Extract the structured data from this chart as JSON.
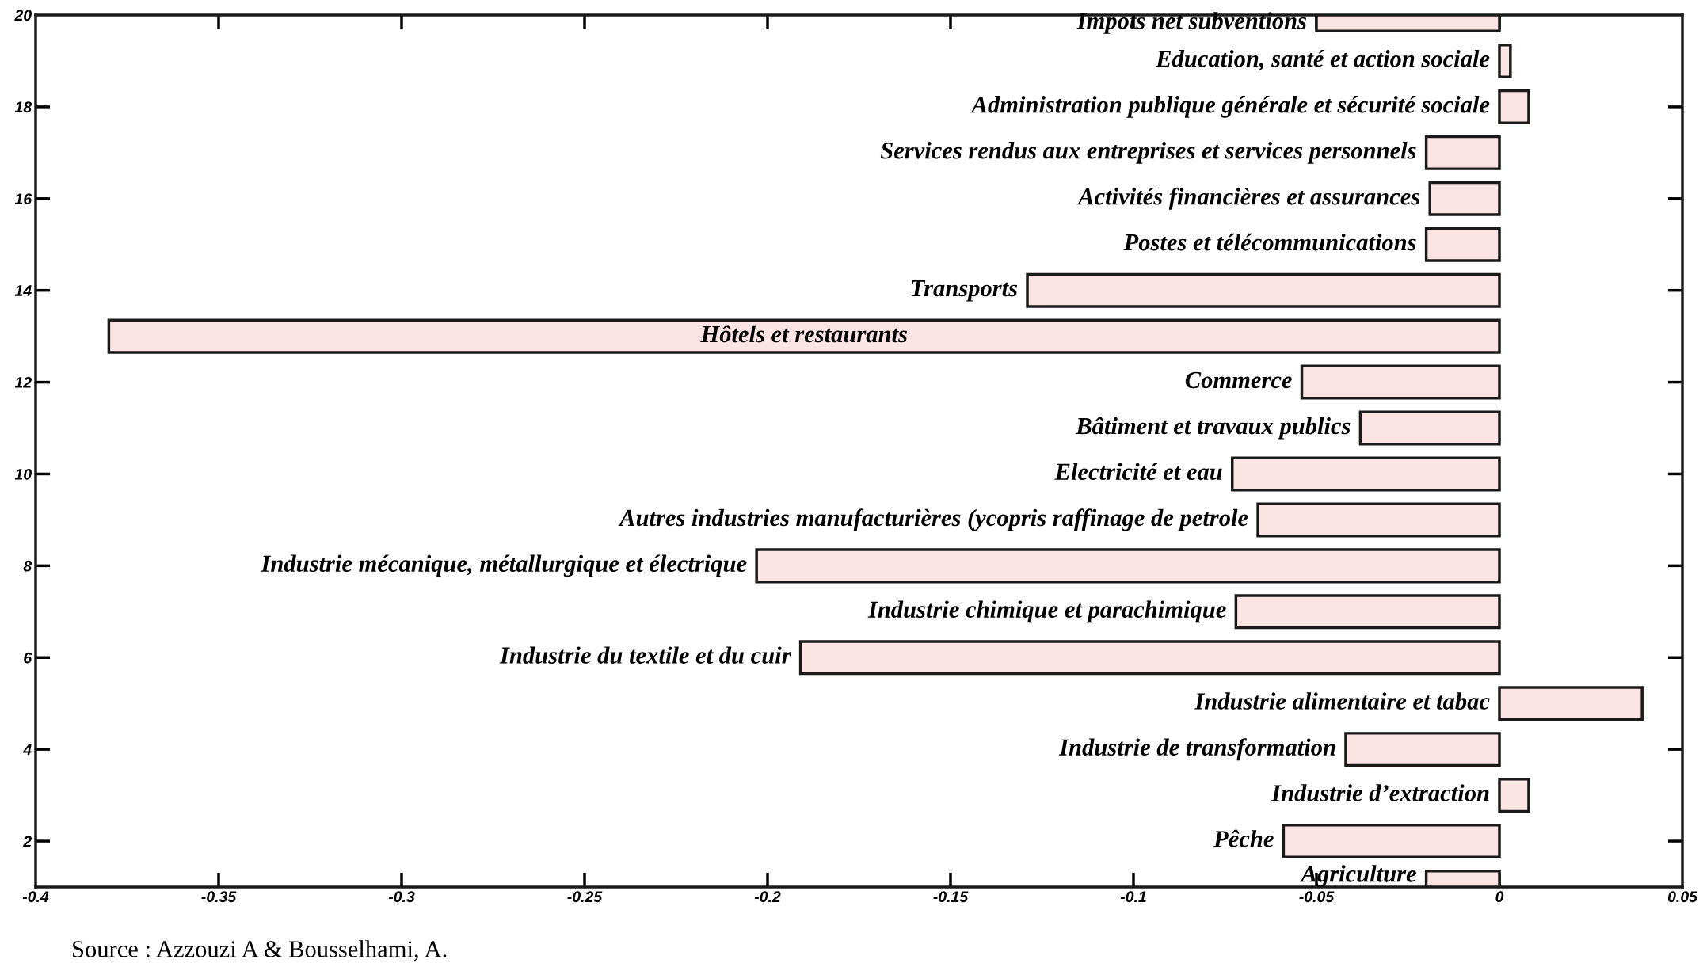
{
  "chart_data": {
    "type": "bar",
    "orientation": "horizontal",
    "x": [
      1,
      2,
      3,
      4,
      5,
      6,
      7,
      8,
      9,
      10,
      11,
      12,
      13,
      14,
      15,
      16,
      17,
      18,
      19,
      20
    ],
    "values": [
      -0.02,
      -0.059,
      0.008,
      -0.042,
      0.039,
      -0.191,
      -0.072,
      -0.203,
      -0.066,
      -0.073,
      -0.038,
      -0.054,
      -0.38,
      -0.129,
      -0.02,
      -0.019,
      -0.02,
      0.008,
      0.003,
      -0.05
    ],
    "color": "#fde4e4",
    "xlim": [
      -0.4,
      0.05
    ],
    "xticks": [
      {
        "value": -0.4,
        "label": "-0.4"
      },
      {
        "value": -0.35,
        "label": "-0.35"
      },
      {
        "value": -0.3,
        "label": "-0.3"
      },
      {
        "value": -0.25,
        "label": "-0.25"
      },
      {
        "value": -0.2,
        "label": "-0.2"
      },
      {
        "value": -0.15,
        "label": "-0.15"
      },
      {
        "value": -0.1,
        "label": "-0.1"
      },
      {
        "value": -0.05,
        "label": "-0.05"
      },
      0,
      0.05
    ],
    "ylim": [
      1,
      20
    ],
    "yticks": [
      2,
      4,
      6,
      8,
      10,
      12,
      14,
      16,
      18,
      20
    ],
    "grid": false,
    "annotations": [
      "Agriculture",
      "Pêche",
      "Industrie d’extraction",
      "Industrie de transformation",
      "Industrie alimentaire et tabac",
      "Industrie du textile et du cuir",
      "Industrie chimique et parachimique",
      "Industrie mécanique, métallurgique et électrique",
      "Autres industries manufacturières (ycopris raffinage de petrole",
      "Electricité et eau",
      "Bâtiment et travaux publics",
      "Commerce",
      "Hôtels et restaurants",
      "Transports",
      "Postes et télécommunications",
      "Activités financières et assurances",
      "Services rendus aux entreprises et services personnels",
      "Administration publique générale et sécurité sociale",
      "Education, santé et action sociale",
      "Impots net subventions",
      "Source : Azzouzi A & Bousselhami, A."
    ]
  }
}
